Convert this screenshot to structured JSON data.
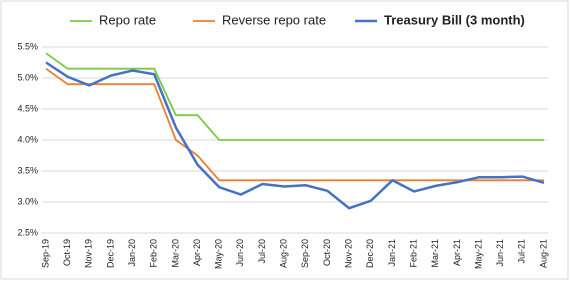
{
  "chart_data": {
    "type": "line",
    "categories": [
      "Sep-19",
      "Oct-19",
      "Nov-19",
      "Dec-19",
      "Jan-20",
      "Feb-20",
      "Mar-20",
      "Apr-20",
      "May-20",
      "Jun-20",
      "Jul-20",
      "Aug-20",
      "Sep-20",
      "Oct-20",
      "Nov-20",
      "Dec-20",
      "Jan-21",
      "Feb-21",
      "Mar-21",
      "Apr-21",
      "May-21",
      "Jun-21",
      "Jul-21",
      "Aug-21"
    ],
    "series": [
      {
        "name": "Repo rate",
        "color": "#7ac943",
        "values": [
          5.4,
          5.15,
          5.15,
          5.15,
          5.15,
          5.15,
          4.4,
          4.4,
          4.0,
          4.0,
          4.0,
          4.0,
          4.0,
          4.0,
          4.0,
          4.0,
          4.0,
          4.0,
          4.0,
          4.0,
          4.0,
          4.0,
          4.0,
          4.0
        ]
      },
      {
        "name": "Reverse repo rate",
        "color": "#ed7d31",
        "values": [
          5.15,
          4.9,
          4.9,
          4.9,
          4.9,
          4.9,
          4.0,
          3.75,
          3.35,
          3.35,
          3.35,
          3.35,
          3.35,
          3.35,
          3.35,
          3.35,
          3.35,
          3.35,
          3.35,
          3.35,
          3.35,
          3.35,
          3.35,
          3.35
        ]
      },
      {
        "name": "Treasury Bill (3 month)",
        "color": "#4472c4",
        "values": [
          5.25,
          5.02,
          4.88,
          5.04,
          5.12,
          5.06,
          4.2,
          3.6,
          3.24,
          3.12,
          3.29,
          3.25,
          3.27,
          3.18,
          2.9,
          3.02,
          3.35,
          3.17,
          3.26,
          3.32,
          3.4,
          3.4,
          3.41,
          3.31
        ]
      }
    ],
    "ylim": [
      2.5,
      5.5
    ],
    "yticks": [
      {
        "value": 2.5,
        "label": "2.5%"
      },
      {
        "value": 3.0,
        "label": "3.0%"
      },
      {
        "value": 3.5,
        "label": "3.5%"
      },
      {
        "value": 4.0,
        "label": "4.0%"
      },
      {
        "value": 4.5,
        "label": "4.5%"
      },
      {
        "value": 5.0,
        "label": "5.0%"
      },
      {
        "value": 5.5,
        "label": "5.5%"
      }
    ],
    "grid": true
  }
}
